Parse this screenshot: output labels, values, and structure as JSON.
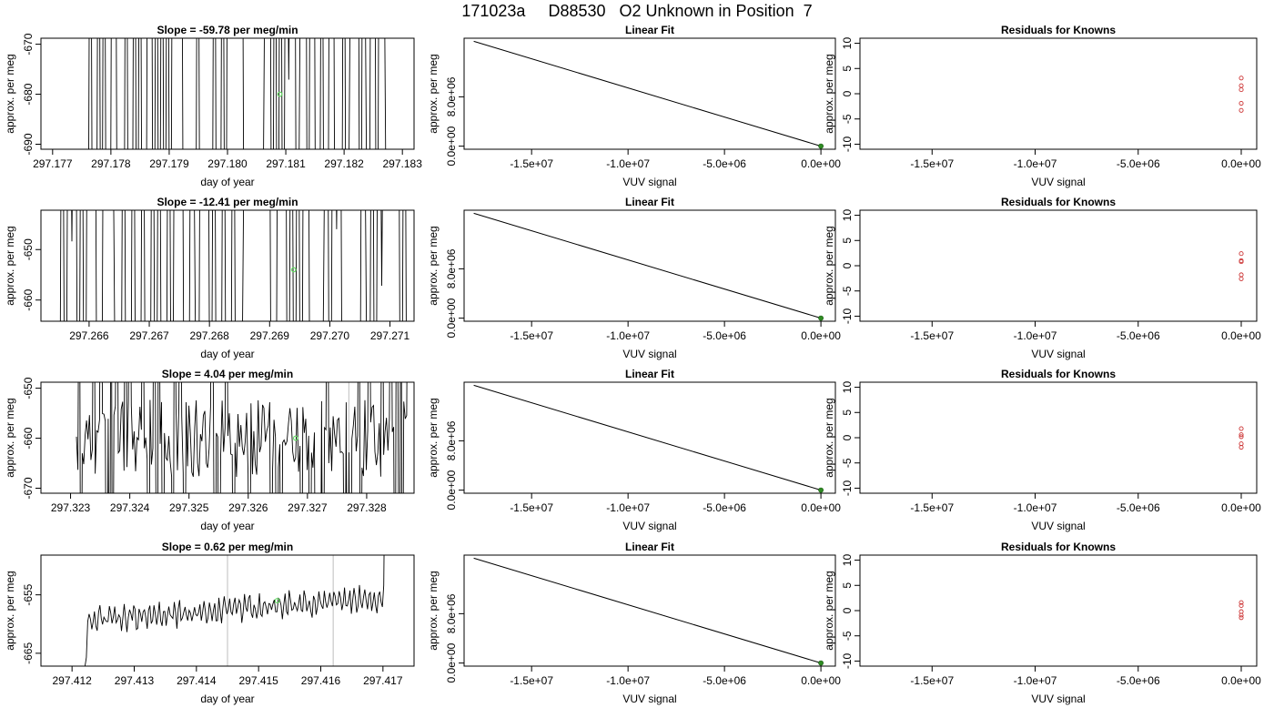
{
  "page_title": "171023a     D88530   O2 Unknown in Position  7",
  "colors": {
    "trace": "#000000",
    "marker": "#66dd66",
    "fit_point": "#2e8b22",
    "residual": "#cc3333",
    "vline": "#c8c8c8"
  },
  "chart_data": [
    {
      "type": "line",
      "title": "Slope =  -59.78  per meg/min",
      "xlabel": "day of year",
      "ylabel": "approx. per meg",
      "xlim": [
        297.1768,
        297.1832
      ],
      "ylim": [
        -691,
        -668.8
      ],
      "xticks": [
        "297.177",
        "297.178",
        "297.179",
        "297.180",
        "297.181",
        "297.182",
        "297.183"
      ],
      "yticks": [
        "-690",
        "-680",
        "-670"
      ],
      "trace_range": [
        297.1776,
        297.1828
      ],
      "trace_pattern": "spikes",
      "marker": {
        "x": 297.1809,
        "y": -680
      }
    },
    {
      "type": "line",
      "title": "Linear Fit",
      "xlabel": "VUV signal",
      "ylabel": "approx. per meg",
      "xlim": [
        -18500000.0,
        750000.0
      ],
      "ylim": [
        -500000.0,
        17500000.0
      ],
      "xticks": [
        "-1.5e+07",
        "-1.0e+07",
        "-5.0e+06",
        "0.0e+00"
      ],
      "yticks": [
        "0.0e+00",
        "8.0e+06"
      ],
      "line": [
        [
          -18000000.0,
          17000000.0
        ],
        [
          0,
          0
        ]
      ],
      "fit_point": {
        "x": 0,
        "y": 0
      }
    },
    {
      "type": "scatter",
      "title": "Residuals for Knowns",
      "xlabel": "VUV signal",
      "ylabel": "approx. per meg",
      "xlim": [
        -18500000.0,
        750000.0
      ],
      "ylim": [
        -11,
        11
      ],
      "xticks": [
        "-1.5e+07",
        "-1.0e+07",
        "-5.0e+06",
        "0.0e+00"
      ],
      "yticks": [
        "-10",
        "-5",
        "0",
        "5",
        "10"
      ],
      "points": [
        {
          "x": 0,
          "y": 3.1
        },
        {
          "x": 0,
          "y": 1.6
        },
        {
          "x": 0,
          "y": 0.8
        },
        {
          "x": 0,
          "y": -1.9
        },
        {
          "x": 0,
          "y": -3.3
        }
      ]
    },
    {
      "type": "line",
      "title": "Slope =  -12.41  per meg/min",
      "xlabel": "day of year",
      "ylabel": "approx. per meg",
      "xlim": [
        297.2652,
        297.2714
      ],
      "ylim": [
        -664.2,
        -642.2
      ],
      "xticks": [
        "297.266",
        "297.267",
        "297.268",
        "297.269",
        "297.270",
        "297.271"
      ],
      "yticks": [
        "-660",
        "-650"
      ],
      "trace_range": [
        297.2655,
        297.2714
      ],
      "trace_pattern": "spikes",
      "marker": {
        "x": 297.2694,
        "y": -654
      }
    },
    {
      "type": "line",
      "title": "Linear Fit",
      "xlabel": "VUV signal",
      "ylabel": "approx. per meg",
      "xlim": [
        -18500000.0,
        750000.0
      ],
      "ylim": [
        -500000.0,
        17500000.0
      ],
      "xticks": [
        "-1.5e+07",
        "-1.0e+07",
        "-5.0e+06",
        "0.0e+00"
      ],
      "yticks": [
        "0.0e+00",
        "8.0e+06"
      ],
      "line": [
        [
          -18000000.0,
          17000000.0
        ],
        [
          0,
          0
        ]
      ],
      "fit_point": {
        "x": 0,
        "y": 0
      }
    },
    {
      "type": "scatter",
      "title": "Residuals for Knowns",
      "xlabel": "VUV signal",
      "ylabel": "approx. per meg",
      "xlim": [
        -18500000.0,
        750000.0
      ],
      "ylim": [
        -11,
        11
      ],
      "xticks": [
        "-1.5e+07",
        "-1.0e+07",
        "-5.0e+06",
        "0.0e+00"
      ],
      "yticks": [
        "-10",
        "-5",
        "0",
        "5",
        "10"
      ],
      "points": [
        {
          "x": 0,
          "y": 2.4
        },
        {
          "x": 0,
          "y": 1.0
        },
        {
          "x": 0,
          "y": 0.8
        },
        {
          "x": 0,
          "y": -1.8
        },
        {
          "x": 0,
          "y": -2.6
        }
      ]
    },
    {
      "type": "line",
      "title": "Slope =  4.04  per meg/min",
      "xlabel": "day of year",
      "ylabel": "approx. per meg",
      "xlim": [
        297.3225,
        297.3288
      ],
      "ylim": [
        -671,
        -648.8
      ],
      "xticks": [
        "297.323",
        "297.324",
        "297.325",
        "297.326",
        "297.327",
        "297.328"
      ],
      "yticks": [
        "-670",
        "-660",
        "-650"
      ],
      "trace_range": [
        297.3231,
        297.3287
      ],
      "trace_pattern": "noisy",
      "marker": {
        "x": 297.3268,
        "y": -660
      },
      "vlines": [
        297.3277
      ]
    },
    {
      "type": "line",
      "title": "Linear Fit",
      "xlabel": "VUV signal",
      "ylabel": "approx. per meg",
      "xlim": [
        -18500000.0,
        750000.0
      ],
      "ylim": [
        -500000.0,
        17500000.0
      ],
      "xticks": [
        "-1.5e+07",
        "-1.0e+07",
        "-5.0e+06",
        "0.0e+00"
      ],
      "yticks": [
        "0.0e+00",
        "8.0e+06"
      ],
      "line": [
        [
          -18000000.0,
          17000000.0
        ],
        [
          0,
          0
        ]
      ],
      "fit_point": {
        "x": 0,
        "y": 0
      }
    },
    {
      "type": "scatter",
      "title": "Residuals for Knowns",
      "xlabel": "VUV signal",
      "ylabel": "approx. per meg",
      "xlim": [
        -18500000.0,
        750000.0
      ],
      "ylim": [
        -11,
        11
      ],
      "xticks": [
        "-1.5e+07",
        "-1.0e+07",
        "-5.0e+06",
        "0.0e+00"
      ],
      "yticks": [
        "-10",
        "-5",
        "0",
        "5",
        "10"
      ],
      "points": [
        {
          "x": 0,
          "y": 1.8
        },
        {
          "x": 0,
          "y": 0.6
        },
        {
          "x": 0,
          "y": 0.2
        },
        {
          "x": 0,
          "y": -1.2
        },
        {
          "x": 0,
          "y": -1.9
        }
      ]
    },
    {
      "type": "line",
      "title": "Slope =  0.62  per meg/min",
      "xlabel": "day of year",
      "ylabel": "approx. per meg",
      "xlim": [
        297.4115,
        297.4175
      ],
      "ylim": [
        -667.2,
        -648.2
      ],
      "xticks": [
        "297.412",
        "297.413",
        "297.414",
        "297.415",
        "297.416",
        "297.417"
      ],
      "yticks": [
        "-665",
        "-655"
      ],
      "trace_range": [
        297.4121,
        297.4171
      ],
      "trace_pattern": "settle",
      "marker": {
        "x": 297.4153,
        "y": -656
      },
      "vlines": [
        297.4145,
        297.4162
      ]
    },
    {
      "type": "line",
      "title": "Linear Fit",
      "xlabel": "VUV signal",
      "ylabel": "approx. per meg",
      "xlim": [
        -18500000.0,
        750000.0
      ],
      "ylim": [
        -500000.0,
        17500000.0
      ],
      "xticks": [
        "-1.5e+07",
        "-1.0e+07",
        "-5.0e+06",
        "0.0e+00"
      ],
      "yticks": [
        "0.0e+00",
        "8.0e+06"
      ],
      "line": [
        [
          -18000000.0,
          17000000.0
        ],
        [
          0,
          0
        ]
      ],
      "fit_point": {
        "x": 0,
        "y": 0
      }
    },
    {
      "type": "scatter",
      "title": "Residuals for Knowns",
      "xlabel": "VUV signal",
      "ylabel": "approx. per meg",
      "xlim": [
        -18500000.0,
        750000.0
      ],
      "ylim": [
        -11,
        11
      ],
      "xticks": [
        "-1.5e+07",
        "-1.0e+07",
        "-5.0e+06",
        "0.0e+00"
      ],
      "yticks": [
        "-10",
        "-5",
        "0",
        "5",
        "10"
      ],
      "points": [
        {
          "x": 0,
          "y": 1.6
        },
        {
          "x": 0,
          "y": 1.0
        },
        {
          "x": 0,
          "y": -0.2
        },
        {
          "x": 0,
          "y": -0.9
        },
        {
          "x": 0,
          "y": -1.4
        }
      ]
    }
  ]
}
